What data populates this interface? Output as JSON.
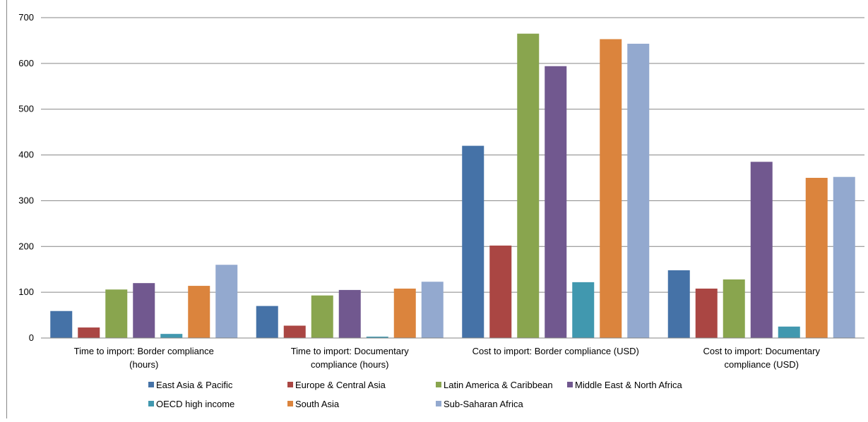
{
  "chart_data": {
    "type": "bar",
    "title": "",
    "xlabel": "",
    "ylabel": "",
    "ylim": [
      0,
      700
    ],
    "yticks": [
      0,
      100,
      200,
      300,
      400,
      500,
      600,
      700
    ],
    "grid": true,
    "legend_position": "bottom",
    "categories": [
      [
        "Time to import: Border compliance",
        "(hours)"
      ],
      [
        "Time to import: Documentary",
        "compliance (hours)"
      ],
      [
        "Cost to import: Border compliance (USD)"
      ],
      [
        "Cost to import: Documentary",
        "compliance (USD)"
      ]
    ],
    "series": [
      {
        "name": "East Asia & Pacific",
        "color": "#4572A7",
        "values": [
          59,
          70,
          420,
          148
        ]
      },
      {
        "name": "Europe & Central Asia",
        "color": "#AA4643",
        "values": [
          23,
          27,
          202,
          108
        ]
      },
      {
        "name": "Latin America & Caribbean",
        "color": "#89A54E",
        "values": [
          106,
          93,
          665,
          128
        ]
      },
      {
        "name": "Middle East & North Africa",
        "color": "#71588F",
        "values": [
          120,
          105,
          594,
          385
        ]
      },
      {
        "name": "OECD high income",
        "color": "#4198AF",
        "values": [
          9,
          3,
          122,
          25
        ]
      },
      {
        "name": "South Asia",
        "color": "#DB843D",
        "values": [
          114,
          108,
          653,
          350
        ]
      },
      {
        "name": "Sub-Saharan Africa",
        "color": "#93A9CF",
        "values": [
          160,
          123,
          643,
          352
        ]
      }
    ]
  }
}
